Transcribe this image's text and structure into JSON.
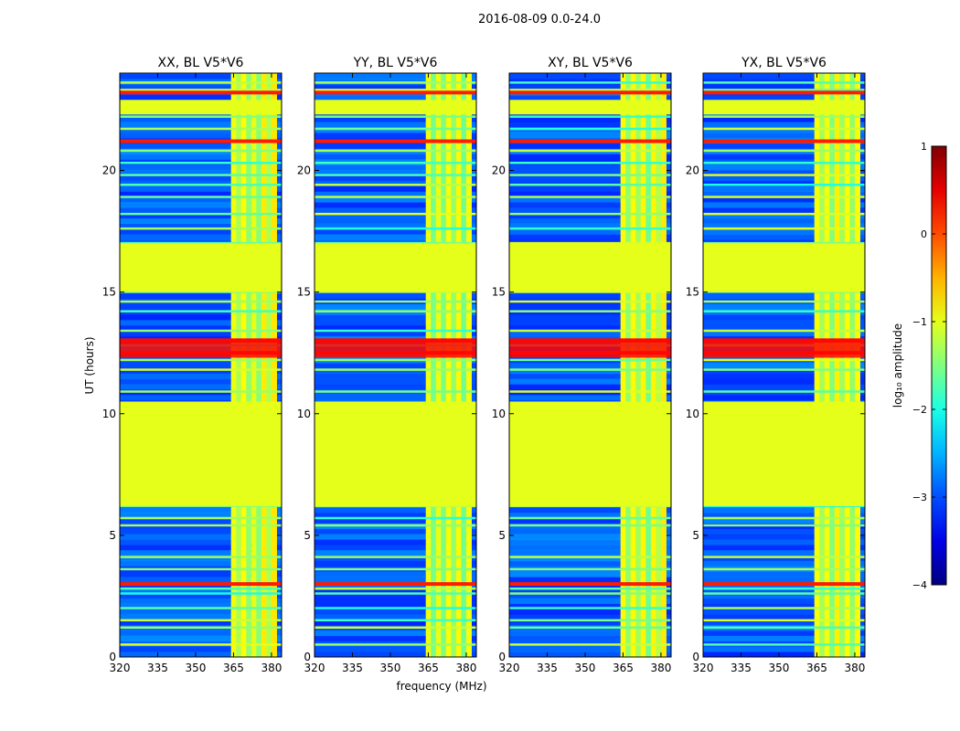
{
  "chart_data": {
    "type": "heatmap",
    "suptitle": "2016-08-09 0.0-24.0",
    "panels": [
      {
        "title": "XX, BL V5*V6",
        "polarization": "XX"
      },
      {
        "title": "YY, BL V5*V6",
        "polarization": "YY"
      },
      {
        "title": "XY, BL V5*V6",
        "polarization": "XY"
      },
      {
        "title": "YX, BL V5*V6",
        "polarization": "YX"
      }
    ],
    "xlabel": "frequency (MHz)",
    "ylabel": "UT (hours)",
    "xlim": [
      320,
      384
    ],
    "ylim": [
      0,
      24
    ],
    "xticks": [
      320,
      335,
      350,
      365,
      380
    ],
    "yticks": [
      0,
      5,
      10,
      15,
      20
    ],
    "colorbar": {
      "label": "log₁₀ amplitude",
      "range": [
        -4,
        1
      ],
      "ticks": [
        1,
        0,
        -1,
        -2,
        -3,
        -4
      ],
      "tick_labels": [
        "1",
        "0",
        "−1",
        "−2",
        "−3",
        "−4"
      ],
      "colormap": "jet"
    },
    "regions": {
      "flagged_time_blocks_hours": [
        [
          6.2,
          10.5
        ],
        [
          15.0,
          17.0
        ],
        [
          22.3,
          22.9
        ]
      ],
      "bright_band_mhz": [
        364,
        380
      ],
      "strong_rfi_times_hours": [
        3.0,
        12.5,
        13.0,
        21.2,
        23.2
      ]
    }
  }
}
